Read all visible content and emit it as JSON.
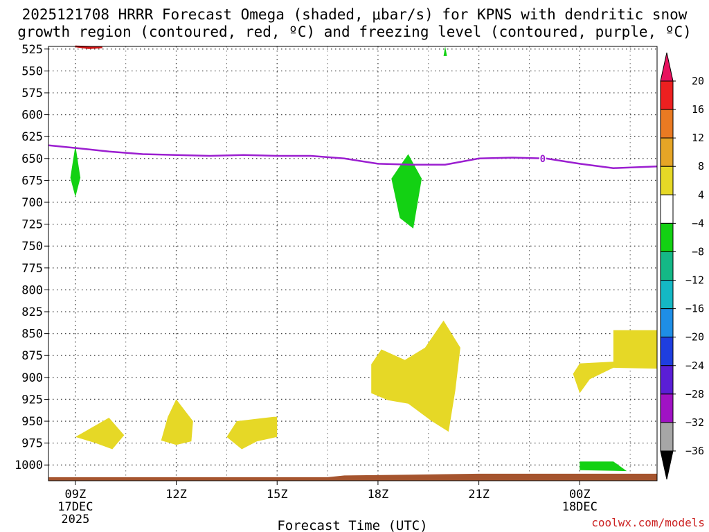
{
  "chart_data": {
    "type": "time-height",
    "title_line1": "2025121708 HRRR Forecast Omega (shaded, μbar/s) for KPNS with dendritic snow",
    "title_line2": "growth region (contoured, red, ºC) and freezing level (contoured, purple, ºC)",
    "xlabel": "Forecast Time (UTC)",
    "credit": "coolwx.com/models",
    "x_range_hours": [
      -0.8,
      17.3
    ],
    "y_range_hpa": [
      522,
      1018
    ],
    "y_ticks": [
      525,
      550,
      575,
      600,
      625,
      650,
      675,
      700,
      725,
      750,
      775,
      800,
      825,
      850,
      875,
      900,
      925,
      950,
      975,
      1000
    ],
    "x_ticks": [
      {
        "hour": 0,
        "label": "09Z",
        "sub1": "17DEC",
        "sub2": "2025"
      },
      {
        "hour": 3,
        "label": "12Z",
        "sub1": "",
        "sub2": ""
      },
      {
        "hour": 6,
        "label": "15Z",
        "sub1": "",
        "sub2": ""
      },
      {
        "hour": 9,
        "label": "18Z",
        "sub1": "",
        "sub2": ""
      },
      {
        "hour": 12,
        "label": "21Z",
        "sub1": "",
        "sub2": ""
      },
      {
        "hour": 15,
        "label": "00Z",
        "sub1": "18DEC",
        "sub2": ""
      }
    ],
    "colorbar": {
      "levels": [
        20,
        16,
        12,
        8,
        4,
        -4,
        -8,
        -12,
        -16,
        -20,
        -24,
        -28,
        -32,
        -36
      ],
      "labels": [
        "20",
        "16",
        "12",
        "8",
        "4",
        "−4",
        "−8",
        "−12",
        "−16",
        "−20",
        "−24",
        "−28",
        "−32",
        "−36"
      ],
      "colors": [
        "#e8125f",
        "#ed2020",
        "#ea7a22",
        "#e6a526",
        "#e6d826",
        "#ffffff",
        "#13d113",
        "#14b886",
        "#14b8c4",
        "#1e8ee6",
        "#1e3ee0",
        "#5a1ed6",
        "#a012c4",
        "#a6a6a6",
        "#000000"
      ]
    },
    "freezing_level": {
      "label": "0",
      "label_at": [
        13.9,
        650
      ],
      "points": [
        [
          -0.8,
          635
        ],
        [
          0,
          638
        ],
        [
          1,
          642
        ],
        [
          2,
          645
        ],
        [
          3,
          646
        ],
        [
          4,
          647
        ],
        [
          5,
          646
        ],
        [
          6,
          647
        ],
        [
          7,
          647
        ],
        [
          8,
          650
        ],
        [
          9,
          656
        ],
        [
          10,
          657
        ],
        [
          11,
          657
        ],
        [
          12,
          650
        ],
        [
          13,
          649
        ],
        [
          14,
          650
        ],
        [
          15,
          656
        ],
        [
          16,
          661
        ],
        [
          17.3,
          659
        ]
      ]
    },
    "dgz_contours": [
      {
        "points": [
          [
            0,
            522
          ],
          [
            0.4,
            524
          ],
          [
            0.8,
            523
          ],
          [
            0,
            522
          ]
        ]
      }
    ],
    "omega_regions": [
      {
        "value": -6,
        "label": "-4 to -8",
        "points": [
          [
            0,
            635
          ],
          [
            0.15,
            672
          ],
          [
            0,
            694
          ],
          [
            -0.15,
            672
          ]
        ]
      },
      {
        "value": -6,
        "label": "-4 to -8",
        "points": [
          [
            9.9,
            645
          ],
          [
            10.3,
            673
          ],
          [
            10.05,
            730
          ],
          [
            9.65,
            718
          ],
          [
            9.4,
            673
          ],
          [
            9.7,
            656
          ]
        ]
      },
      {
        "value": -6,
        "label": "-4 to -8",
        "points": [
          [
            11,
            522
          ],
          [
            11.05,
            533
          ],
          [
            10.95,
            533
          ]
        ]
      },
      {
        "value": -6,
        "label": "-4 to -8",
        "points": [
          [
            15,
            996
          ],
          [
            16,
            996
          ],
          [
            16.4,
            1007
          ],
          [
            15,
            1006
          ]
        ]
      },
      {
        "value": 6,
        "label": "4 to 8",
        "points": [
          [
            0,
            968
          ],
          [
            1,
            946
          ],
          [
            1.45,
            966
          ],
          [
            1.1,
            982
          ],
          [
            0.6,
            975
          ]
        ]
      },
      {
        "value": 6,
        "label": "4 to 8",
        "points": [
          [
            3,
            925
          ],
          [
            3.5,
            950
          ],
          [
            3.45,
            973
          ],
          [
            3,
            977
          ],
          [
            2.55,
            972
          ],
          [
            2.75,
            945
          ]
        ]
      },
      {
        "value": 6,
        "label": "4 to 8",
        "points": [
          [
            5.9,
            945
          ],
          [
            6,
            945
          ],
          [
            6,
            968
          ],
          [
            5.4,
            973
          ],
          [
            4.95,
            982
          ],
          [
            4.5,
            968
          ],
          [
            4.8,
            950
          ]
        ]
      },
      {
        "value": 6,
        "label": "4 to 8",
        "points": [
          [
            9.1,
            868
          ],
          [
            9.8,
            880
          ],
          [
            10.4,
            866
          ],
          [
            10.95,
            835
          ],
          [
            11.45,
            866
          ],
          [
            11.3,
            915
          ],
          [
            11.1,
            962
          ],
          [
            10.6,
            950
          ],
          [
            9.9,
            930
          ],
          [
            9.3,
            926
          ],
          [
            8.8,
            918
          ],
          [
            8.8,
            885
          ]
        ]
      },
      {
        "value": 6,
        "label": "4 to 8",
        "points": [
          [
            15,
            884
          ],
          [
            16,
            882
          ],
          [
            16,
            846
          ],
          [
            17.3,
            846
          ],
          [
            17.3,
            890
          ],
          [
            16,
            889
          ],
          [
            15.3,
            902
          ],
          [
            15,
            918
          ],
          [
            14.8,
            896
          ]
        ]
      }
    ],
    "surface": {
      "color": "#a5542e",
      "points": [
        [
          -0.8,
          1014
        ],
        [
          7.5,
          1014
        ],
        [
          8,
          1012
        ],
        [
          10,
          1011
        ],
        [
          12,
          1010
        ],
        [
          17.3,
          1010
        ],
        [
          17.3,
          1018
        ],
        [
          -0.8,
          1018
        ]
      ]
    }
  }
}
